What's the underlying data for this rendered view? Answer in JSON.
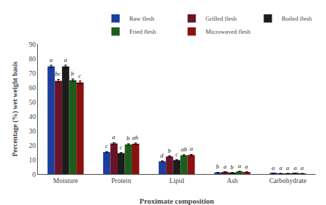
{
  "chart_data": {
    "type": "bar",
    "categories": [
      "Moisture",
      "Protein",
      "Lipid",
      "Ash",
      "Carbohydrate"
    ],
    "series": [
      {
        "name": "Raw flesh",
        "color": "#1B3F9E",
        "values": [
          74.5,
          15.2,
          8.8,
          1.1,
          0.5
        ],
        "errors": [
          0.8,
          0.4,
          0.3,
          0.1,
          0.05
        ],
        "letters": [
          "a",
          "c",
          "d",
          "b",
          "a"
        ]
      },
      {
        "name": "Grilled flesh",
        "color": "#6B1427",
        "values": [
          64.5,
          21.2,
          12.2,
          1.5,
          0.4
        ],
        "errors": [
          1.0,
          0.5,
          0.4,
          0.1,
          0.05
        ],
        "letters": [
          "bc",
          "a",
          "b",
          "a",
          "a"
        ]
      },
      {
        "name": "Boiled flesh",
        "color": "#1C1C1C",
        "values": [
          74.5,
          14.5,
          9.7,
          1.0,
          0.4
        ],
        "errors": [
          0.9,
          0.4,
          0.3,
          0.1,
          0.05
        ],
        "letters": [
          "a",
          "c",
          "c",
          "b",
          "a"
        ]
      },
      {
        "name": "Fried flesh",
        "color": "#1E5C1E",
        "values": [
          65.0,
          20.5,
          13.0,
          1.8,
          0.6
        ],
        "errors": [
          0.8,
          0.5,
          0.4,
          0.15,
          0.05
        ],
        "letters": [
          "b",
          "b",
          "ab",
          "a",
          "a"
        ]
      },
      {
        "name": "Microwaved flesh",
        "color": "#8B1010",
        "values": [
          63.5,
          21.0,
          13.2,
          1.4,
          0.35
        ],
        "errors": [
          0.9,
          0.5,
          0.4,
          0.1,
          0.05
        ],
        "letters": [
          "c",
          "ab",
          "a",
          "a",
          "a"
        ]
      }
    ],
    "xlabel": "Proximate composition",
    "ylabel": "Percentage (%) wet weight basis",
    "ylim": [
      0,
      90
    ],
    "yticks": [
      0,
      10,
      20,
      30,
      40,
      50,
      60,
      70,
      80,
      90
    ],
    "grid": false,
    "legend": "upper right"
  }
}
